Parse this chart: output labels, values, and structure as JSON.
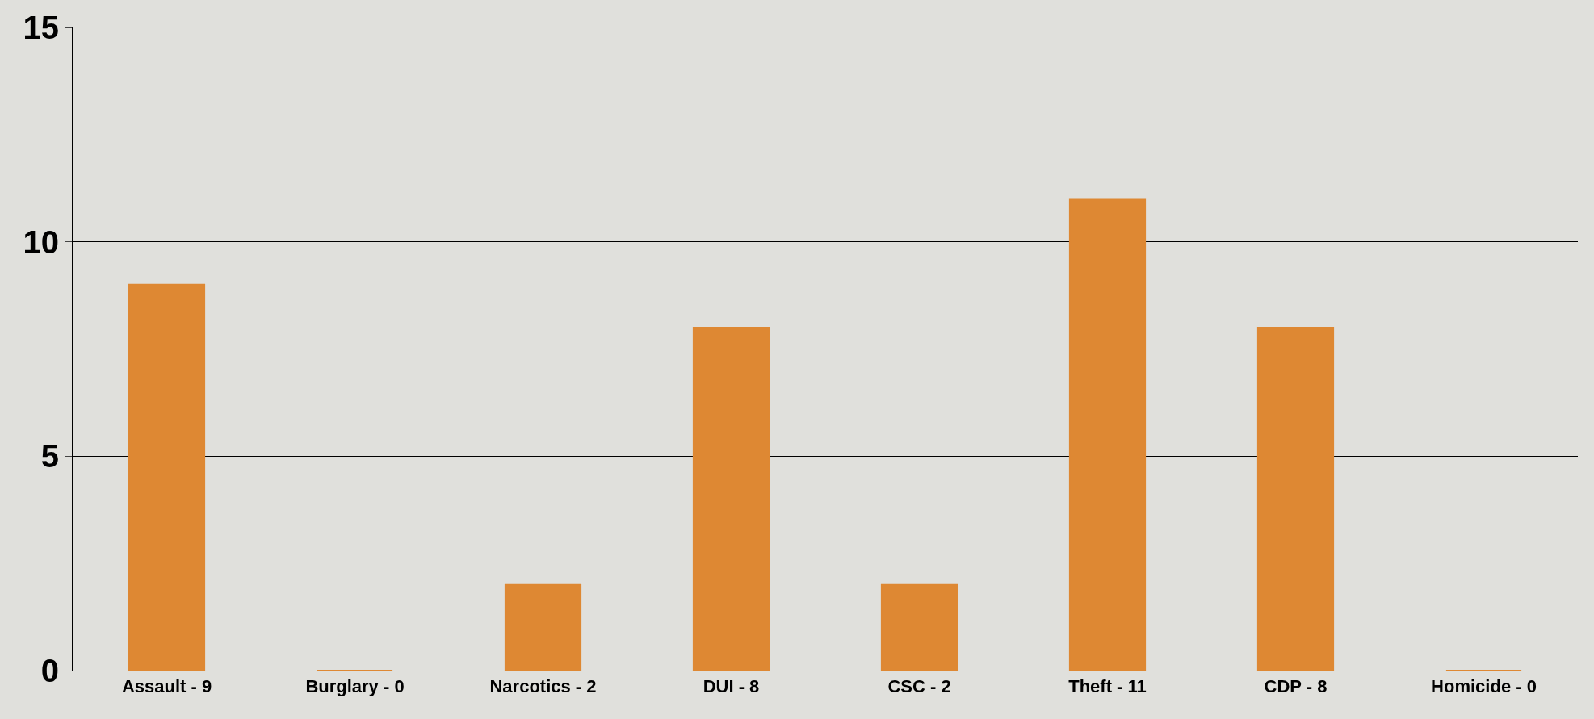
{
  "chart_data": {
    "type": "bar",
    "categories": [
      "Assault - 9",
      "Burglary - 0",
      "Narcotics - 2",
      "DUI - 8",
      "CSC - 2",
      "Theft - 11",
      "CDP - 8",
      "Homicide - 0"
    ],
    "values": [
      9,
      0,
      2,
      8,
      2,
      11,
      8,
      0
    ],
    "color": "#de8833",
    "ylim": [
      0,
      15
    ],
    "yticks": [
      0,
      5,
      10,
      15
    ],
    "grid": "y"
  }
}
